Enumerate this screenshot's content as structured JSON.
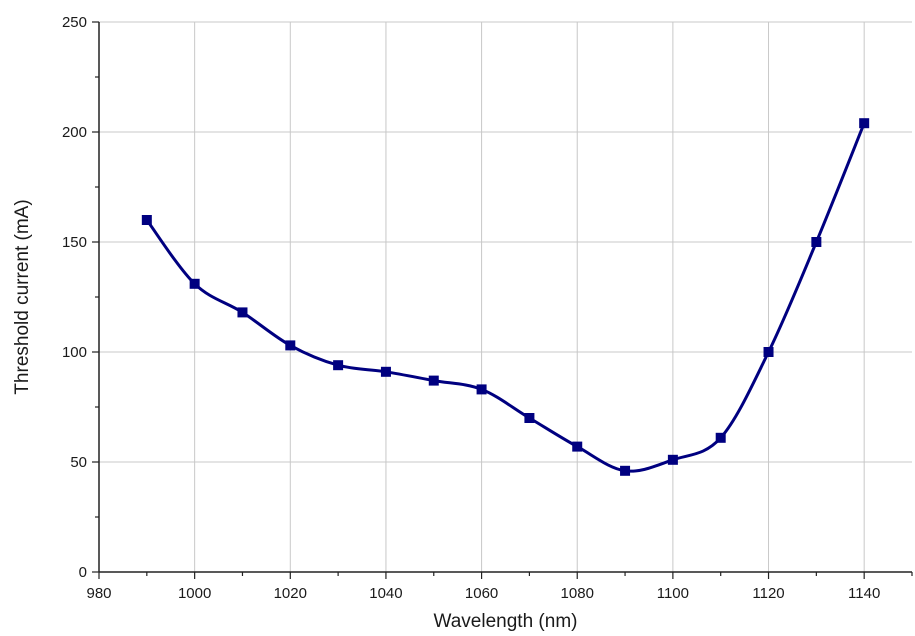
{
  "chart_data": {
    "type": "line",
    "title": "",
    "xlabel": "Wavelength (nm)",
    "ylabel": "Threshold current (mA)",
    "xlim": [
      980,
      1150
    ],
    "ylim": [
      0,
      250
    ],
    "x_ticks": [
      980,
      1000,
      1020,
      1040,
      1060,
      1080,
      1100,
      1120,
      1140
    ],
    "y_ticks": [
      0,
      50,
      100,
      150,
      200,
      250
    ],
    "grid": true,
    "legend": "none",
    "marker": "square",
    "smooth": true,
    "color": "#000080",
    "series": [
      {
        "x": [
          990,
          1000,
          1010,
          1020,
          1030,
          1040,
          1050,
          1060,
          1070,
          1080,
          1090,
          1100,
          1110,
          1120,
          1130,
          1140
        ],
        "y": [
          160,
          131,
          118,
          103,
          94,
          91,
          87,
          83,
          70,
          57,
          46,
          51,
          61,
          100,
          150,
          204
        ]
      }
    ]
  }
}
